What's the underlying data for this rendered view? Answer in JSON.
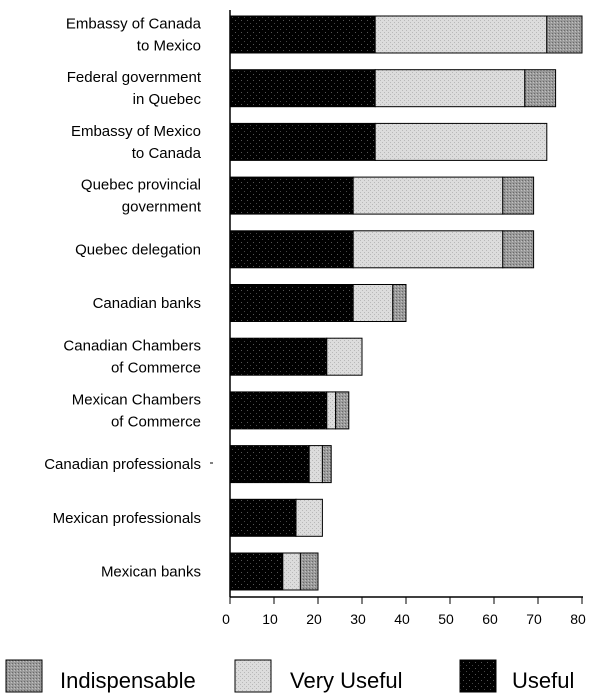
{
  "chart_data": {
    "type": "bar",
    "orientation": "horizontal",
    "stacked": true,
    "categories": [
      [
        "Embassy of Canada",
        "to Mexico"
      ],
      [
        "Federal government",
        "in Quebec"
      ],
      [
        "Embassy of Mexico",
        "to Canada"
      ],
      [
        "Quebec provincial",
        "government"
      ],
      [
        "Quebec delegation"
      ],
      [
        "Canadian banks"
      ],
      [
        "Canadian Chambers",
        "of Commerce"
      ],
      [
        "Mexican Chambers",
        "of Commerce"
      ],
      [
        "Canadian professionals"
      ],
      [
        "Mexican professionals"
      ],
      [
        "Mexican banks"
      ]
    ],
    "series": [
      {
        "name": "Useful",
        "color": "#000000",
        "values": [
          33,
          33,
          33,
          28,
          28,
          28,
          22,
          22,
          18,
          15,
          12
        ]
      },
      {
        "name": "Very Useful",
        "color": "#d9d9d9",
        "values": [
          39,
          34,
          39,
          34,
          34,
          9,
          8,
          2,
          3,
          6,
          4
        ]
      },
      {
        "name": "Indispensable",
        "color": "#8f8f8f",
        "values": [
          8,
          7,
          0,
          7,
          7,
          3,
          0,
          3,
          2,
          0,
          4
        ]
      }
    ],
    "xticks": [
      "0",
      "10",
      "20",
      "30",
      "40",
      "50",
      "60",
      "70",
      "80"
    ],
    "xlim": [
      0,
      80
    ],
    "legend": {
      "placement": "bottom",
      "order": [
        "Indispensable",
        "Very Useful",
        "Useful"
      ]
    },
    "grid": false
  }
}
